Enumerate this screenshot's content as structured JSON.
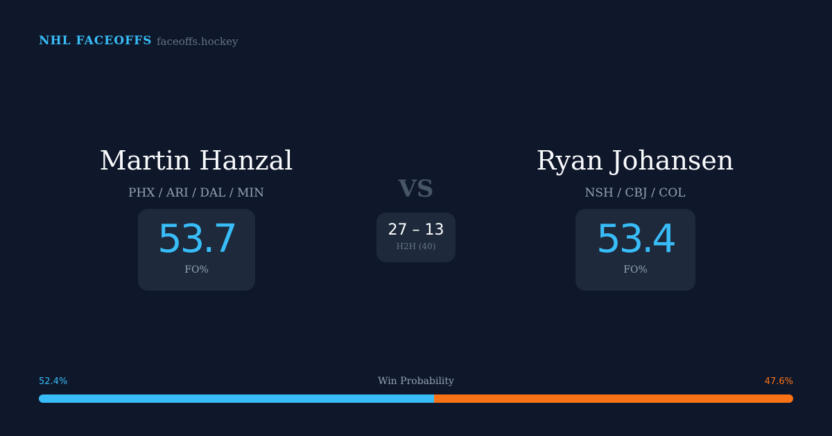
{
  "header": {
    "brand": "NHL FACEOFFS",
    "site": "faceoffs.hockey"
  },
  "players": [
    {
      "name": "Martin Hanzal",
      "teams": "PHX / ARI / DAL / MIN",
      "fo_pct": "53.7",
      "fo_label": "FO%"
    },
    {
      "name": "Ryan Johansen",
      "teams": "NSH / CBJ / COL",
      "fo_pct": "53.4",
      "fo_label": "FO%"
    }
  ],
  "vs": "VS",
  "h2h": {
    "score": "27 – 13",
    "label": "H2H (40)"
  },
  "win_probability": {
    "label": "Win Probability",
    "left": "52.4%",
    "right": "47.6%",
    "left_value": 52.4,
    "right_value": 47.6,
    "left_color": "#38bdf8",
    "right_color": "#f97316"
  }
}
